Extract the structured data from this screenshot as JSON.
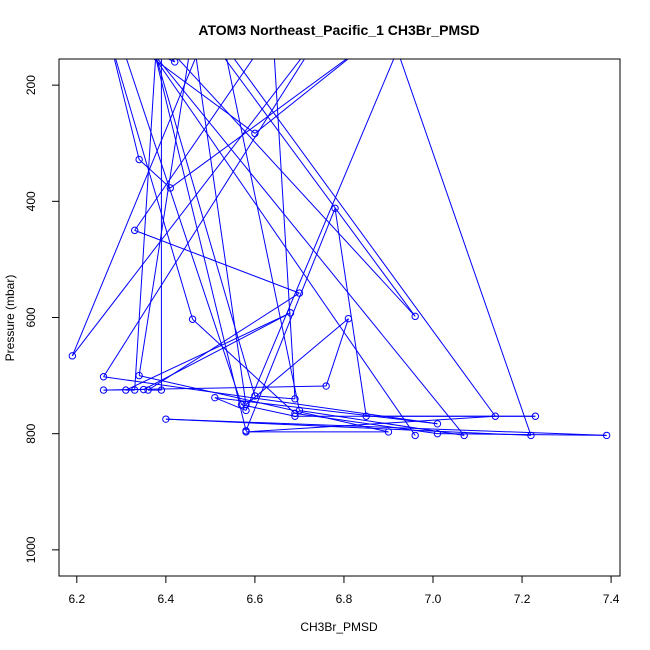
{
  "chart_data": {
    "type": "scatter",
    "title": "ATOM3 Northeast_Pacific_1 CH3Br_PMSD",
    "xlabel": "CH3Br_PMSD",
    "ylabel": "Pressure (mbar)",
    "xlim": [
      6.16,
      7.42
    ],
    "ylim": [
      1045,
      155
    ],
    "y_inverted": true,
    "grid": false,
    "legend": "none",
    "x_ticks": [
      "6.2",
      "6.4",
      "6.6",
      "6.8",
      "7.0",
      "7.2",
      "7.4"
    ],
    "y_ticks": [
      "200",
      "400",
      "600",
      "800",
      "1000"
    ],
    "color": "#0000ff",
    "marker": "open-circle",
    "line": "connected",
    "series": [
      {
        "points": [
          [
            6.3,
            128
          ],
          [
            6.57,
            750
          ],
          [
            6.69,
            770
          ],
          [
            7.23,
            770
          ],
          [
            6.85,
            770
          ],
          [
            6.78,
            412
          ],
          [
            6.58,
            795
          ],
          [
            6.37,
            130
          ],
          [
            6.6,
            735
          ],
          [
            6.69,
            740
          ],
          [
            6.64,
            105
          ],
          [
            6.33,
            450
          ],
          [
            6.7,
            558
          ],
          [
            6.36,
            725
          ],
          [
            6.39,
            725
          ],
          [
            6.39,
            125
          ],
          [
            6.42,
            160
          ],
          [
            6.32,
            125
          ],
          [
            6.6,
            283
          ],
          [
            6.85,
            130
          ],
          [
            6.41,
            377
          ],
          [
            6.34,
            328
          ],
          [
            6.27,
            110
          ],
          [
            6.46,
            603
          ],
          [
            6.69,
            765
          ],
          [
            7.01,
            800
          ],
          [
            7.39,
            803
          ],
          [
            6.4,
            775
          ],
          [
            7.22,
            803
          ],
          [
            6.92,
            140
          ],
          [
            6.58,
            760
          ],
          [
            6.51,
            738
          ],
          [
            7.01,
            783
          ],
          [
            6.26,
            702
          ],
          [
            6.75,
            108
          ],
          [
            6.19,
            666
          ],
          [
            6.49,
            110
          ],
          [
            6.96,
            598
          ],
          [
            6.38,
            115
          ],
          [
            6.33,
            725
          ],
          [
            6.31,
            725
          ],
          [
            6.68,
            592
          ],
          [
            6.35,
            724
          ],
          [
            6.26,
            725
          ],
          [
            6.76,
            718
          ],
          [
            6.81,
            602
          ],
          [
            6.58,
            750
          ],
          [
            6.46,
            110
          ],
          [
            6.34,
            700
          ],
          [
            6.9,
            797
          ],
          [
            6.58,
            797
          ],
          [
            7.14,
            770
          ],
          [
            6.53,
            130
          ],
          [
            6.7,
            760
          ],
          [
            7.07,
            803
          ],
          [
            6.35,
            125
          ],
          [
            6.96,
            803
          ]
        ]
      }
    ]
  }
}
